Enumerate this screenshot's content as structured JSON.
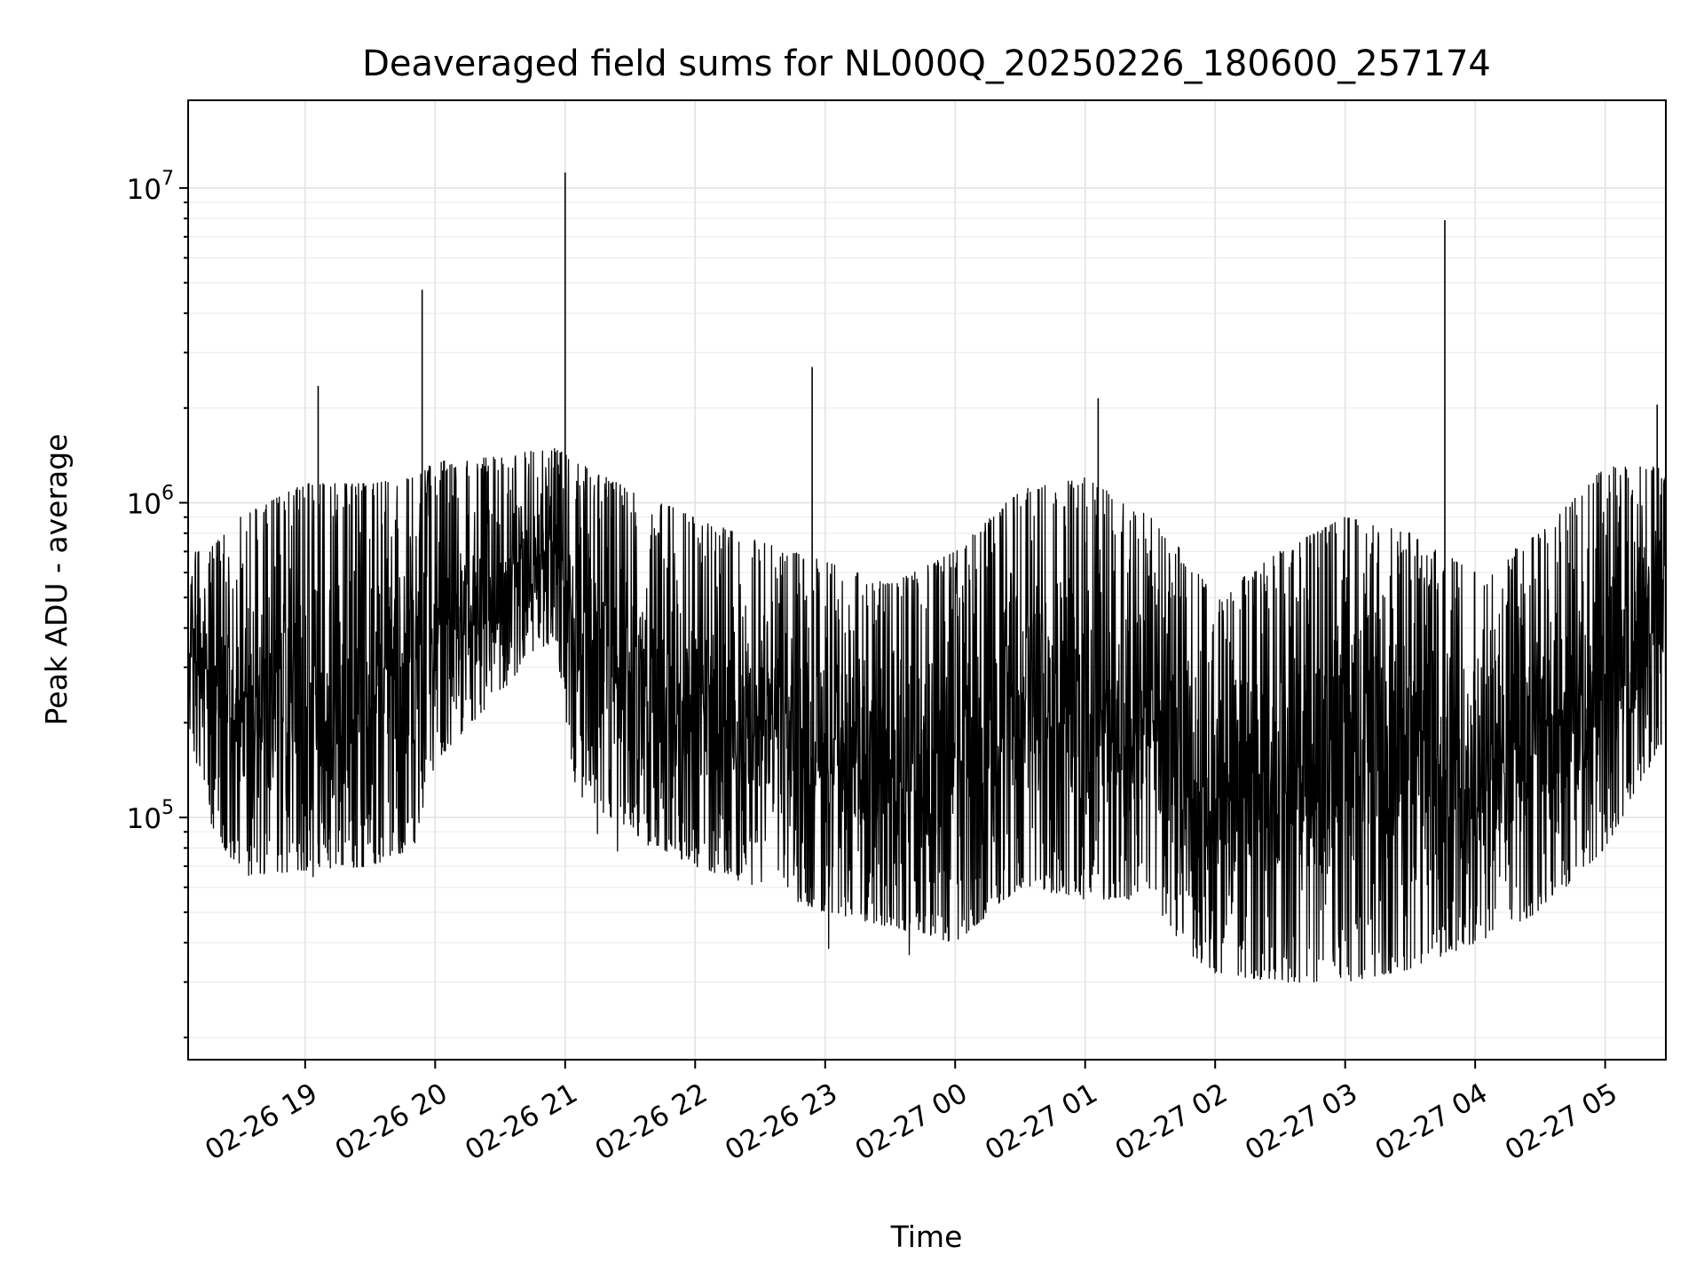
{
  "chart_data": {
    "type": "line",
    "title": "Deaveraged field sums for NL000Q_20250226_180600_257174",
    "xlabel": "Time",
    "ylabel": "Peak ADU - average",
    "yscale": "log",
    "ylim": [
      17000,
      19000000
    ],
    "xlim": [
      "2025-02-26 18:06",
      "2025-02-27 05:28"
    ],
    "x_tick_labels": [
      "02-26 19",
      "02-26 20",
      "02-26 21",
      "02-26 22",
      "02-26 23",
      "02-27 00",
      "02-27 01",
      "02-27 02",
      "02-27 03",
      "02-27 04",
      "02-27 05"
    ],
    "x_tick_times": [
      "2025-02-26 19:00",
      "2025-02-26 20:00",
      "2025-02-26 21:00",
      "2025-02-26 22:00",
      "2025-02-26 23:00",
      "2025-02-27 00:00",
      "2025-02-27 01:00",
      "2025-02-27 02:00",
      "2025-02-27 03:00",
      "2025-02-27 04:00",
      "2025-02-27 05:00"
    ],
    "y_ticks": [
      100000,
      1000000,
      10000000
    ],
    "y_tick_labels": [
      {
        "base": "10",
        "exp": "5"
      },
      {
        "base": "10",
        "exp": "6"
      },
      {
        "base": "10",
        "exp": "7"
      }
    ],
    "grid": true,
    "line_color": "#000000",
    "series": [
      {
        "envelope_times": [
          "2025-02-26 18:06",
          "2025-02-26 18:15",
          "2025-02-26 18:30",
          "2025-02-26 19:00",
          "2025-02-26 19:30",
          "2025-02-26 19:50",
          "2025-02-26 20:00",
          "2025-02-26 20:30",
          "2025-02-26 20:55",
          "2025-02-26 21:05",
          "2025-02-26 21:30",
          "2025-02-26 22:00",
          "2025-02-26 22:30",
          "2025-02-26 23:00",
          "2025-02-26 23:30",
          "2025-02-27 00:00",
          "2025-02-27 00:30",
          "2025-02-27 01:00",
          "2025-02-27 01:30",
          "2025-02-27 01:45",
          "2025-02-27 02:00",
          "2025-02-27 02:30",
          "2025-02-27 03:00",
          "2025-02-27 03:30",
          "2025-02-27 04:00",
          "2025-02-27 04:30",
          "2025-02-27 05:00",
          "2025-02-27 05:28"
        ],
        "envelope_low": [
          200000,
          100000,
          65000,
          68000,
          70000,
          80000,
          150000,
          250000,
          380000,
          120000,
          90000,
          70000,
          60000,
          50000,
          45000,
          40000,
          60000,
          55000,
          55000,
          38000,
          32000,
          30000,
          30000,
          33000,
          40000,
          50000,
          80000,
          180000
        ],
        "envelope_high": [
          700000,
          700000,
          900000,
          1150000,
          1150000,
          1200000,
          1350000,
          1400000,
          1500000,
          1350000,
          1100000,
          900000,
          750000,
          650000,
          550000,
          700000,
          1100000,
          1200000,
          900000,
          700000,
          500000,
          700000,
          900000,
          800000,
          600000,
          800000,
          1300000,
          1300000
        ],
        "spikes": [
          {
            "time": "2025-02-26 19:06",
            "value": 2350000
          },
          {
            "time": "2025-02-26 19:54",
            "value": 4750000
          },
          {
            "time": "2025-02-26 21:00",
            "value": 11200000
          },
          {
            "time": "2025-02-26 22:54",
            "value": 2700000
          },
          {
            "time": "2025-02-27 01:06",
            "value": 2150000
          },
          {
            "time": "2025-02-27 03:46",
            "value": 7900000
          },
          {
            "time": "2025-02-27 05:24",
            "value": 2050000
          }
        ]
      }
    ]
  }
}
